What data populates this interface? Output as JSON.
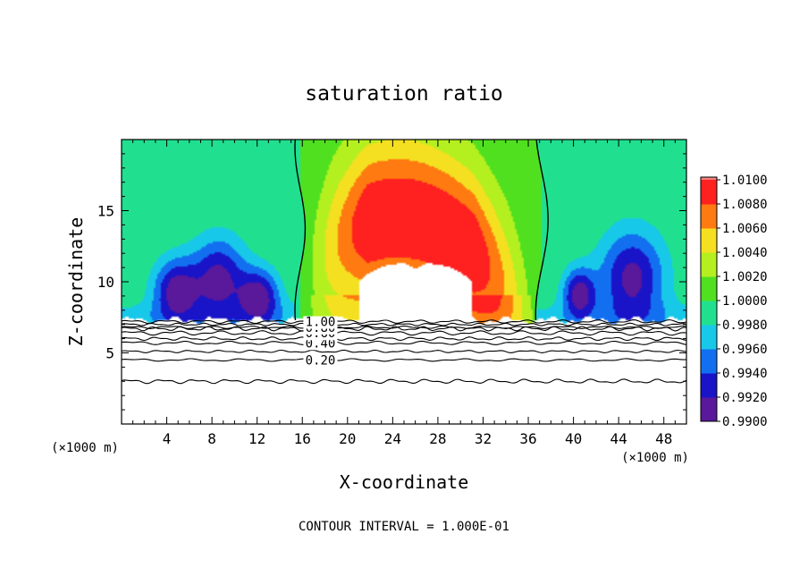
{
  "chart_data": {
    "type": "heatmap",
    "title": "saturation ratio",
    "xlabel": "X-coordinate",
    "ylabel": "Z-coordinate",
    "x_unit": "(×1000 m)",
    "y_unit": "(×1000 m)",
    "xlim": [
      0,
      50
    ],
    "ylim": [
      0,
      20
    ],
    "x_ticks": [
      4,
      8,
      12,
      16,
      20,
      24,
      28,
      32,
      36,
      40,
      44,
      48
    ],
    "y_ticks": [
      5,
      10,
      15
    ],
    "footer": "CONTOUR INTERVAL = 1.000E-01",
    "colorbar": {
      "levels": [
        "0.9900",
        "0.9920",
        "0.9940",
        "0.9960",
        "0.9980",
        "1.0000",
        "1.0020",
        "1.0040",
        "1.0060",
        "1.0080",
        "1.0100"
      ],
      "colors": [
        "#5a189a",
        "#1a14c8",
        "#1270f0",
        "#18c8e8",
        "#20e090",
        "#50e020",
        "#b4f020",
        "#f4e020",
        "#ff7a10",
        "#ff2020",
        "#f28080"
      ]
    },
    "contours": [
      {
        "value": 0.2,
        "label": "0.20",
        "z": 4.5
      },
      {
        "value": 0.4,
        "label": "0.40",
        "z": 5.7
      },
      {
        "value": 0.6,
        "label": "0.60",
        "z": 6.4
      },
      {
        "value": 0.8,
        "label": "0.80",
        "z": 6.8
      },
      {
        "value": 1.0,
        "label": "1.00",
        "z": 7.2
      }
    ],
    "extra_contour_z": [
      3.0,
      5.1,
      6.0,
      6.7,
      7.0
    ],
    "label_x": 17.6,
    "supersat_boundaries_x": [
      15.8,
      37.2
    ],
    "cloud_region": {
      "x": [
        21,
        31
      ],
      "z": [
        7.2,
        11.3
      ]
    },
    "cloud_base_z": 7.3
  }
}
